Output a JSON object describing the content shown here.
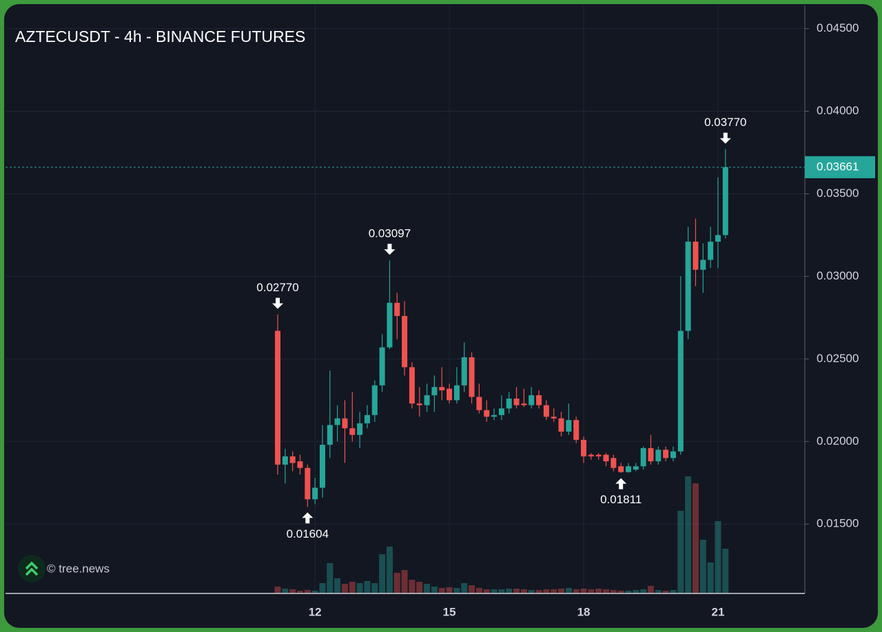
{
  "chart_data": {
    "type": "candlestick",
    "title": "AZTECUSDT - 4h - BINANCE FUTURES",
    "watermark": "© tree.news",
    "categories": [
      null,
      null,
      null,
      null,
      null,
      "12",
      null,
      null,
      null,
      null,
      null,
      null,
      null,
      null,
      null,
      null,
      null,
      null,
      null,
      null,
      null,
      null,
      null,
      "15",
      null,
      null,
      null,
      null,
      null,
      null,
      null,
      null,
      null,
      null,
      null,
      null,
      null,
      null,
      null,
      null,
      null,
      "18",
      null,
      null,
      null,
      null,
      null,
      null,
      null,
      null,
      null,
      null,
      null,
      null,
      null,
      null,
      null,
      null,
      null,
      "21",
      null
    ],
    "open": [
      0.0267,
      0.0186,
      0.0191,
      0.0188,
      0.0184,
      0.0165,
      0.0172,
      0.0198,
      0.021,
      0.0214,
      0.0208,
      0.0204,
      0.0211,
      0.0216,
      0.0234,
      0.0257,
      0.0284,
      0.0276,
      0.0245,
      0.0223,
      0.0222,
      0.0228,
      0.0233,
      0.0232,
      0.0225,
      0.0234,
      0.0251,
      0.0227,
      0.0219,
      0.0215,
      0.0216,
      0.022,
      0.0226,
      0.0223,
      0.0222,
      0.0228,
      0.0222,
      0.0215,
      0.0214,
      0.0206,
      0.0213,
      0.0201,
      0.0192,
      0.0192,
      0.0192,
      0.019,
      0.0185,
      0.01815,
      0.0183,
      0.0185,
      0.0196,
      0.0188,
      0.0195,
      0.019,
      0.0194,
      0.0267,
      0.0321,
      0.0304,
      0.031,
      0.0321,
      0.0325
    ],
    "high": [
      0.0277,
      0.01955,
      0.0194,
      0.0192,
      0.0186,
      0.0178,
      0.021,
      0.0243,
      0.0222,
      0.0225,
      0.023,
      0.0218,
      0.0222,
      0.0237,
      0.0265,
      0.03097,
      0.029,
      0.0285,
      0.0248,
      0.0233,
      0.0235,
      0.024,
      0.0245,
      0.0235,
      0.0245,
      0.026,
      0.0254,
      0.0235,
      0.0225,
      0.022,
      0.0228,
      0.023,
      0.0233,
      0.0232,
      0.0233,
      0.0231,
      0.0225,
      0.022,
      0.0218,
      0.0223,
      0.0215,
      0.0203,
      0.0193,
      0.0193,
      0.0193,
      0.0192,
      0.0187,
      0.0187,
      0.0187,
      0.0197,
      0.0204,
      0.0197,
      0.0197,
      0.0197,
      0.03,
      0.033,
      0.0335,
      0.032,
      0.033,
      0.036,
      0.0377
    ],
    "low": [
      0.018,
      0.01746,
      0.0182,
      0.018,
      0.01604,
      0.0162,
      0.0166,
      0.019,
      0.02,
      0.0187,
      0.02,
      0.0196,
      0.0208,
      0.0212,
      0.023,
      0.0256,
      0.0262,
      0.024,
      0.022,
      0.0215,
      0.0218,
      0.0218,
      0.0225,
      0.0223,
      0.0223,
      0.023,
      0.0223,
      0.0217,
      0.0212,
      0.0213,
      0.0213,
      0.0217,
      0.022,
      0.0221,
      0.022,
      0.022,
      0.0213,
      0.0212,
      0.0203,
      0.0204,
      0.0199,
      0.0187,
      0.0189,
      0.0189,
      0.0185,
      0.0182,
      0.01811,
      0.01811,
      0.0182,
      0.0183,
      0.0186,
      0.0186,
      0.0188,
      0.0188,
      0.0192,
      0.0262,
      0.0294,
      0.029,
      0.0305,
      0.0305,
      0.0323
    ],
    "close": [
      0.0186,
      0.0191,
      0.0187,
      0.0184,
      0.0165,
      0.0172,
      0.0198,
      0.021,
      0.0214,
      0.0208,
      0.0204,
      0.0211,
      0.0216,
      0.0234,
      0.0257,
      0.0284,
      0.0276,
      0.0245,
      0.0223,
      0.0222,
      0.0228,
      0.0233,
      0.0231,
      0.0225,
      0.0234,
      0.0251,
      0.0227,
      0.0219,
      0.0215,
      0.0216,
      0.022,
      0.0226,
      0.0222,
      0.0222,
      0.0228,
      0.0222,
      0.0215,
      0.0214,
      0.0206,
      0.0213,
      0.0201,
      0.0191,
      0.0191,
      0.0191,
      0.0188,
      0.0184,
      0.01815,
      0.0185,
      0.0185,
      0.0196,
      0.0188,
      0.0195,
      0.019,
      0.0194,
      0.0267,
      0.0321,
      0.0304,
      0.031,
      0.0321,
      0.0325,
      0.03661
    ],
    "volume": [
      10,
      7,
      6,
      4,
      5,
      4,
      15,
      44,
      22,
      14,
      17,
      15,
      18,
      15,
      57,
      68,
      30,
      34,
      20,
      17,
      14,
      10,
      8,
      9,
      8,
      15,
      12,
      8,
      6,
      6,
      6,
      7,
      7,
      6,
      5,
      5,
      6,
      6,
      7,
      8,
      6,
      7,
      6,
      7,
      6,
      5,
      4,
      4,
      5,
      6,
      11,
      5,
      4,
      5,
      120,
      170,
      160,
      78,
      45,
      105,
      65
    ],
    "up_color": "#26a69a",
    "down_color": "#ef5350",
    "ylim": [
      0.0108,
      0.0464
    ],
    "yticks": [
      {
        "value": 0.015,
        "label": "0.01500"
      },
      {
        "value": 0.02,
        "label": "0.02000"
      },
      {
        "value": 0.025,
        "label": "0.02500"
      },
      {
        "value": 0.03,
        "label": "0.03000"
      },
      {
        "value": 0.035,
        "label": "0.03500"
      },
      {
        "value": 0.04,
        "label": "0.04000"
      },
      {
        "value": 0.045,
        "label": "0.04500"
      }
    ],
    "last_price": {
      "value": 0.03661,
      "label": "0.03661"
    },
    "annotations": [
      {
        "value": 0.0277,
        "label": "0.02770"
      },
      {
        "value": 0.01604,
        "label": "0.01604"
      },
      {
        "value": 0.03097,
        "label": "0.03097"
      },
      {
        "value": 0.01811,
        "label": "0.01811"
      },
      {
        "value": 0.0377,
        "label": "0.03770"
      }
    ],
    "grid": true
  }
}
